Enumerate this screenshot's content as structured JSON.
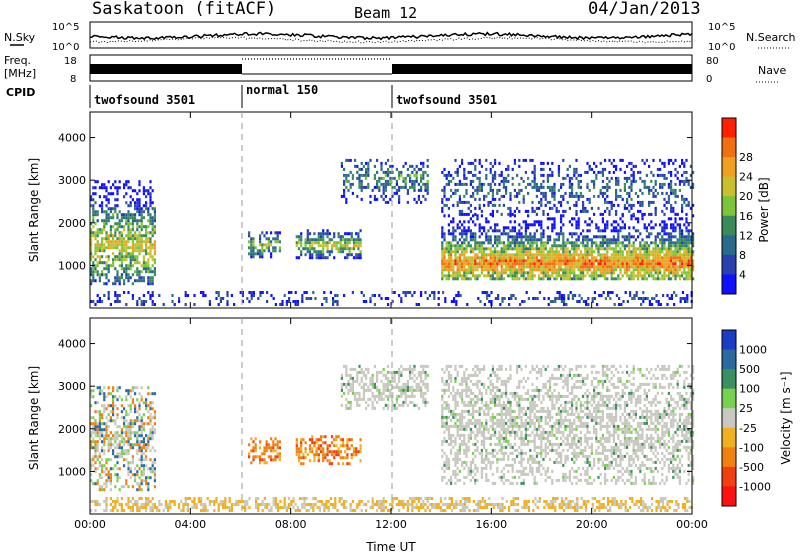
{
  "header": {
    "title": "Saskatoon (fitACF)",
    "beam": "Beam 12",
    "date": "04/Jan/2013"
  },
  "noise_panel": {
    "left_label": "N.Sky",
    "right_label": "N.Search",
    "left_top_tick": "10^5",
    "left_bottom_tick": "10^0",
    "right_top_tick": "10^5",
    "right_bottom_tick": "10^0"
  },
  "freq_panel": {
    "left_label_1": "Freq.",
    "left_label_2": "[MHz]",
    "left_top_tick": "18",
    "left_bottom_tick": "8",
    "right_label": "Nave",
    "right_top_tick": "80",
    "right_bottom_tick": "0"
  },
  "cpid_panel": {
    "label": "CPID",
    "segments": [
      {
        "start_h": 0,
        "end_h": 6,
        "text": "twofsound 3501"
      },
      {
        "start_h": 6,
        "end_h": 12,
        "text": "normal 150"
      },
      {
        "start_h": 12,
        "end_h": 24,
        "text": "twofsound 3501"
      }
    ]
  },
  "chart_data": [
    {
      "type": "heatmap",
      "name": "power",
      "ylabel": "Slant Range [km]",
      "ylim": [
        0,
        4600
      ],
      "yticks": [
        1000,
        2000,
        3000,
        4000
      ],
      "xlim": [
        0,
        24
      ],
      "xticks": [
        0,
        4,
        8,
        12,
        16,
        20,
        24
      ],
      "colorbar": {
        "label": "Power [dB]",
        "ticks": [
          "4",
          "8",
          "12",
          "16",
          "20",
          "24",
          "28"
        ],
        "colors": [
          "#1010ff",
          "#2a3fb0",
          "#2a6a8a",
          "#3a8a5a",
          "#7cc43a",
          "#c8c030",
          "#f0a020",
          "#f07010",
          "#ff2000"
        ]
      },
      "echo_regions": [
        {
          "t0": 0.0,
          "t1": 2.6,
          "r0": 600,
          "r1": 3000,
          "core": 1500,
          "intensity": 0.65
        },
        {
          "t0": 6.3,
          "t1": 7.6,
          "r0": 1200,
          "r1": 1800,
          "core": 1500,
          "intensity": 0.55
        },
        {
          "t0": 8.2,
          "t1": 10.8,
          "r0": 1200,
          "r1": 1850,
          "core": 1500,
          "intensity": 0.6
        },
        {
          "t0": 10.0,
          "t1": 13.5,
          "r0": 2500,
          "r1": 3500,
          "core": 3100,
          "intensity": 0.35
        },
        {
          "t0": 14.0,
          "t1": 24.0,
          "r0": 700,
          "r1": 2200,
          "core": 1100,
          "intensity": 0.85
        },
        {
          "t0": 14.0,
          "t1": 24.0,
          "r0": 2200,
          "r1": 3500,
          "core": 2800,
          "intensity": 0.25
        },
        {
          "t0": 0.0,
          "t1": 24.0,
          "r0": 100,
          "r1": 400,
          "core": 250,
          "intensity": 0.15
        }
      ]
    },
    {
      "type": "heatmap",
      "name": "velocity",
      "ylabel": "Slant Range [km]",
      "ylim": [
        0,
        4600
      ],
      "yticks": [
        1000,
        2000,
        3000,
        4000
      ],
      "xlim": [
        0,
        24
      ],
      "xticks": [
        0,
        4,
        8,
        12,
        16,
        20,
        24
      ],
      "xticklabels": [
        "00:00",
        "04:00",
        "08:00",
        "12:00",
        "16:00",
        "20:00",
        "00:00"
      ],
      "xlabel": "Time UT",
      "colorbar": {
        "label": "Velocity [m s⁻¹]",
        "ticks": [
          "1000",
          "500",
          "100",
          "25",
          "-25",
          "-100",
          "-500",
          "-1000"
        ],
        "colors": [
          "#1a3cc8",
          "#2a6aa0",
          "#3a9060",
          "#78d050",
          "#c8c8c0",
          "#f0b020",
          "#f08010",
          "#f04010",
          "#ff1010"
        ]
      },
      "echo_regions": [
        {
          "t0": 0.0,
          "t1": 2.6,
          "r0": 600,
          "r1": 3000,
          "kind": "mixed"
        },
        {
          "t0": 6.3,
          "t1": 7.6,
          "r0": 1200,
          "r1": 1800,
          "kind": "negative"
        },
        {
          "t0": 8.2,
          "t1": 10.8,
          "r0": 1200,
          "r1": 1850,
          "kind": "negative"
        },
        {
          "t0": 10.0,
          "t1": 13.5,
          "r0": 2500,
          "r1": 3500,
          "kind": "ground"
        },
        {
          "t0": 14.0,
          "t1": 24.0,
          "r0": 700,
          "r1": 3500,
          "kind": "ground"
        },
        {
          "t0": 0.0,
          "t1": 24.0,
          "r0": 100,
          "r1": 400,
          "kind": "negative_low"
        }
      ]
    }
  ]
}
